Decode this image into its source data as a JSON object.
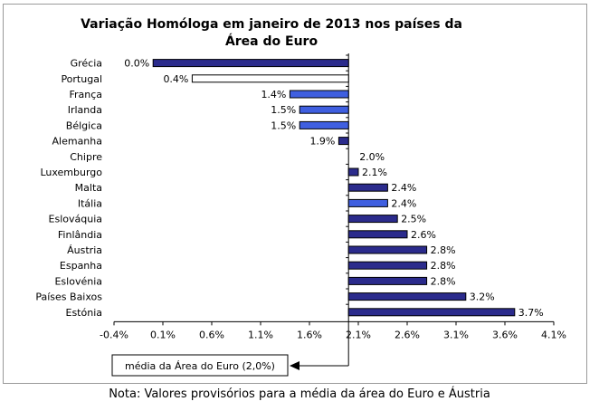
{
  "chart_data": {
    "type": "bar",
    "orientation": "horizontal",
    "title_line1": "Variação Homóloga em janeiro de 2013 nos países da",
    "title_line2": "Área do Euro",
    "categories": [
      "Grécia",
      "Portugal",
      "França",
      "Irlanda",
      "Bélgica",
      "Alemanha",
      "Chipre",
      "Luxemburgo",
      "Malta",
      "Itália",
      "Eslováquia",
      "Finlândia",
      "Áustria",
      "Espanha",
      "Eslovénia",
      "Países Baixos",
      "Estónia"
    ],
    "values": [
      0.0,
      0.4,
      1.4,
      1.5,
      1.5,
      1.9,
      2.0,
      2.1,
      2.4,
      2.4,
      2.5,
      2.6,
      2.8,
      2.8,
      2.8,
      3.2,
      3.7
    ],
    "data_labels": [
      "0.0%",
      "0.4%",
      "1.4%",
      "1.5%",
      "1.5%",
      "1.9%",
      "2.0%",
      "2.1%",
      "2.4%",
      "2.4%",
      "2.5%",
      "2.6%",
      "2.8%",
      "2.8%",
      "2.8%",
      "3.2%",
      "3.7%"
    ],
    "bar_styles": [
      "dark",
      "portugal",
      "light",
      "light",
      "light",
      "dark",
      "dark",
      "dark",
      "dark",
      "light",
      "dark",
      "dark",
      "dark",
      "dark",
      "dark",
      "dark",
      "dark"
    ],
    "baseline": 2.0,
    "xlim": [
      -0.4,
      4.1
    ],
    "xticks": [
      -0.4,
      0.1,
      0.6,
      1.1,
      1.6,
      2.1,
      2.6,
      3.1,
      3.6,
      4.1
    ],
    "xtick_labels": [
      "-0.4%",
      "0.1%",
      "0.6%",
      "1.1%",
      "1.6%",
      "2.1%",
      "2.6%",
      "3.1%",
      "3.6%",
      "4.1%"
    ],
    "annotation": "média da Área do Euro (2,0%)",
    "colors": {
      "dark": "#2b2b8c",
      "light": "#3f5fe0",
      "portugal_fill": "#ffffff",
      "portugal_stroke": "#000000"
    }
  },
  "footnote": "Nota: Valores provisórios para a média da área do Euro e Áustria"
}
